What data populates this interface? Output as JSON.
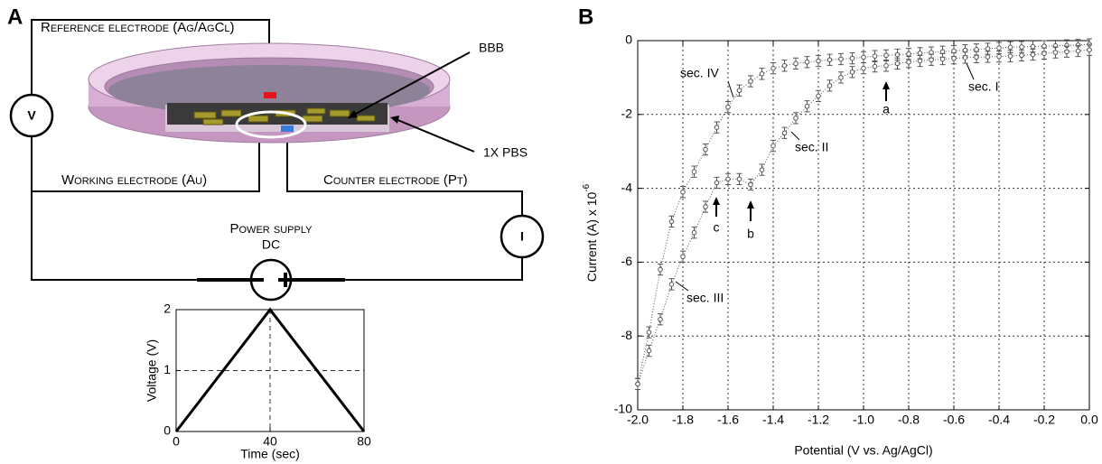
{
  "diagram": {
    "panel_label": "A",
    "reference_electrode": "Reference electrode (Ag/AgCl)",
    "bbb": "BBB",
    "pbs": "1X PBS",
    "working_electrode": "Working electrode (Au)",
    "counter_electrode": "Counter electrode (Pt)",
    "power_supply": "Power supply",
    "dc": "DC",
    "voltmeter": "V",
    "ammeter": "I"
  },
  "panel_b_label": "B",
  "chart_data": [
    {
      "type": "line",
      "x": [
        0,
        40,
        80
      ],
      "values": [
        0,
        2,
        0
      ],
      "color": "#000000",
      "xlim": [
        0,
        80
      ],
      "ylim": [
        0,
        2
      ],
      "xticks": [
        0,
        40,
        80
      ],
      "yticks": [
        0,
        1,
        2
      ],
      "xlabel": "Time (sec)",
      "ylabel": "Voltage (V)",
      "grid": true
    },
    {
      "type": "line",
      "x": [
        -2.0,
        -1.95,
        -1.9,
        -1.85,
        -1.8,
        -1.75,
        -1.7,
        -1.65,
        -1.6,
        -1.55,
        -1.5,
        -1.45,
        -1.4,
        -1.35,
        -1.3,
        -1.25,
        -1.2,
        -1.15,
        -1.1,
        -1.05,
        -1.0,
        -0.95,
        -0.9,
        -0.85,
        -0.8,
        -0.75,
        -0.7,
        -0.65,
        -0.6,
        -0.55,
        -0.5,
        -0.45,
        -0.4,
        -0.35,
        -0.3,
        -0.25,
        -0.2,
        -0.15,
        -0.1,
        -0.05,
        0.0
      ],
      "series": [
        {
          "color": "#555555",
          "values": [
            -9.3,
            -7.9,
            -6.2,
            -4.9,
            -4.1,
            -3.55,
            -2.95,
            -2.35,
            -1.8,
            -1.35,
            -1.1,
            -0.9,
            -0.75,
            -0.68,
            -0.62,
            -0.58,
            -0.55,
            -0.52,
            -0.5,
            -0.48,
            -0.45,
            -0.42,
            -0.4,
            -0.38,
            -0.36,
            -0.34,
            -0.32,
            -0.3,
            -0.28,
            -0.26,
            -0.24,
            -0.22,
            -0.2,
            -0.18,
            -0.17,
            -0.16,
            -0.15,
            -0.14,
            -0.13,
            -0.12,
            -0.1
          ],
          "errors": [
            0.15,
            0.15,
            0.15,
            0.15,
            0.15,
            0.15,
            0.15,
            0.15,
            0.15,
            0.15,
            0.15,
            0.15,
            0.15,
            0.15,
            0.15,
            0.15,
            0.15,
            0.15,
            0.15,
            0.15,
            0.15,
            0.15,
            0.15,
            0.15,
            0.15,
            0.15,
            0.15,
            0.15,
            0.15,
            0.15,
            0.15,
            0.15,
            0.15,
            0.15,
            0.15,
            0.15,
            0.15,
            0.15,
            0.15,
            0.15,
            0.15
          ]
        },
        {
          "color": "#555555",
          "values": [
            -9.3,
            -8.4,
            -7.55,
            -6.6,
            -5.85,
            -5.2,
            -4.5,
            -3.85,
            -3.75,
            -3.75,
            -3.9,
            -3.5,
            -2.85,
            -2.5,
            -2.1,
            -1.78,
            -1.5,
            -1.22,
            -1.0,
            -0.85,
            -0.75,
            -0.7,
            -0.68,
            -0.62,
            -0.58,
            -0.55,
            -0.52,
            -0.5,
            -0.48,
            -0.46,
            -0.45,
            -0.44,
            -0.43,
            -0.42,
            -0.4,
            -0.38,
            -0.35,
            -0.32,
            -0.3,
            -0.28,
            -0.25
          ],
          "errors": [
            0.15,
            0.15,
            0.15,
            0.15,
            0.15,
            0.15,
            0.15,
            0.15,
            0.15,
            0.15,
            0.15,
            0.15,
            0.15,
            0.15,
            0.15,
            0.15,
            0.15,
            0.15,
            0.15,
            0.15,
            0.15,
            0.15,
            0.15,
            0.15,
            0.15,
            0.15,
            0.15,
            0.15,
            0.15,
            0.15,
            0.15,
            0.15,
            0.15,
            0.15,
            0.15,
            0.15,
            0.15,
            0.15,
            0.15,
            0.15,
            0.15
          ]
        }
      ],
      "xlim": [
        -2.0,
        0.0
      ],
      "ylim": [
        -10,
        0
      ],
      "xticks": [
        {
          "value": -2.0,
          "label": "-2.0"
        },
        -1.8,
        -1.6,
        -1.4,
        -1.2,
        {
          "value": -1.0,
          "label": "-1.0"
        },
        -0.8,
        -0.6,
        -0.4,
        -0.2,
        {
          "value": 0.0,
          "label": "0.0"
        }
      ],
      "yticks": [
        0,
        -2,
        -4,
        -6,
        -8,
        -10
      ],
      "xlabel": "Potential (V vs. Ag/AgCl)",
      "ylabel": "Current (A) x 10",
      "ylabel_exponent": "-6",
      "grid": true,
      "annotations": [
        "sec. IV",
        "sec. I",
        "sec. II",
        "sec. III",
        "a",
        "b",
        "c"
      ]
    }
  ]
}
